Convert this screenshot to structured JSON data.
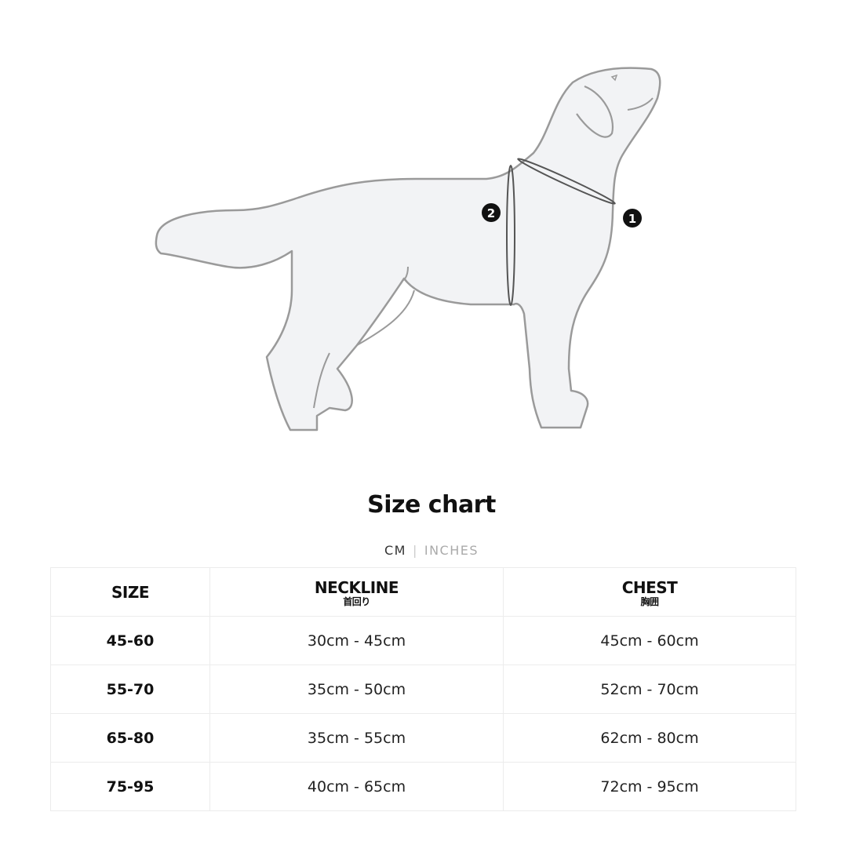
{
  "illustration": {
    "markers": [
      "1",
      "2"
    ],
    "colors": {
      "body_fill": "#f2f3f5",
      "outline": "#9a9a9a",
      "measure_line": "#555555",
      "marker": "#111111"
    }
  },
  "title": "Size chart",
  "units": {
    "active": "CM",
    "separator": "|",
    "inactive": "INCHES"
  },
  "table": {
    "headers": [
      {
        "label": "SIZE",
        "sub": ""
      },
      {
        "label": "NECKLINE",
        "sub": "首回り"
      },
      {
        "label": "CHEST",
        "sub": "胸囲"
      }
    ],
    "rows": [
      [
        "45-60",
        "30cm - 45cm",
        "45cm - 60cm"
      ],
      [
        "55-70",
        "35cm - 50cm",
        "52cm - 70cm"
      ],
      [
        "65-80",
        "35cm - 55cm",
        "62cm - 80cm"
      ],
      [
        "75-95",
        "40cm - 65cm",
        "72cm - 95cm"
      ]
    ]
  }
}
